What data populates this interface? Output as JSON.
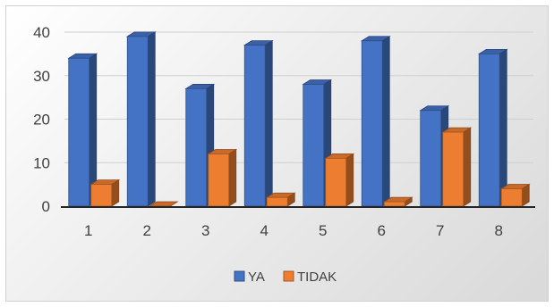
{
  "chart_data": {
    "type": "bar",
    "categories": [
      "1",
      "2",
      "3",
      "4",
      "5",
      "6",
      "7",
      "8"
    ],
    "series": [
      {
        "name": "YA",
        "values": [
          34,
          39,
          27,
          37,
          28,
          38,
          22,
          35
        ]
      },
      {
        "name": "TIDAK",
        "values": [
          5,
          0,
          12,
          2,
          11,
          1,
          17,
          4
        ]
      }
    ],
    "ylim": [
      0,
      40
    ],
    "yticks": [
      "0",
      "10",
      "20",
      "30",
      "40"
    ],
    "grid": true,
    "legend_position": "bottom",
    "colors": {
      "YA": "#4472c4",
      "TIDAK": "#ed7d31"
    }
  }
}
